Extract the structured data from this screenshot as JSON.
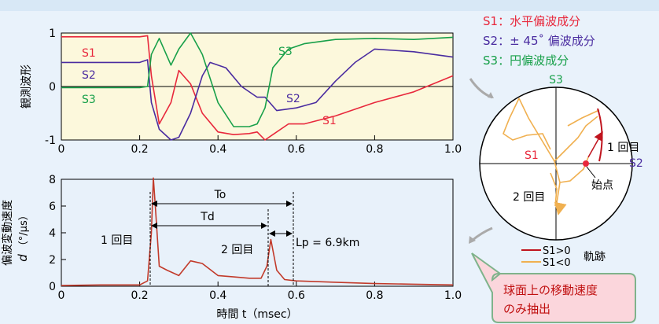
{
  "colors": {
    "s1": "#e8283c",
    "s2": "#4a2ca0",
    "s3": "#18a04a",
    "trace": "#c23a2a",
    "orange": "#f0b050",
    "panel1": "#fcf8dc",
    "panel2": "#e8f1fa",
    "callout_bg": "#fbd6dc",
    "callout_border": "#7fb38b"
  },
  "chart_data": [
    {
      "type": "line",
      "ylabel": "観測波形",
      "xlim": [
        0,
        1.0
      ],
      "ylim": [
        -1,
        1
      ],
      "xticks": [
        "0",
        "0.2",
        "0.4",
        "0.6",
        "0.8",
        "1.0"
      ],
      "yticks": [
        "1",
        "0",
        "-1"
      ],
      "series": [
        {
          "name": "S1",
          "x": [
            0,
            0.2,
            0.22,
            0.23,
            0.25,
            0.28,
            0.3,
            0.33,
            0.36,
            0.4,
            0.44,
            0.48,
            0.5,
            0.52,
            0.54,
            0.58,
            0.62,
            0.7,
            0.8,
            0.9,
            1.0
          ],
          "values": [
            0.93,
            0.93,
            0.95,
            0.2,
            -0.7,
            -0.3,
            0.3,
            0.05,
            -0.5,
            -0.85,
            -0.9,
            -0.88,
            -0.85,
            -1.0,
            -0.9,
            -0.7,
            -0.7,
            -0.55,
            -0.3,
            -0.1,
            0.2
          ]
        },
        {
          "name": "S2",
          "x": [
            0,
            0.2,
            0.22,
            0.23,
            0.25,
            0.28,
            0.3,
            0.33,
            0.36,
            0.38,
            0.42,
            0.46,
            0.5,
            0.52,
            0.55,
            0.6,
            0.65,
            0.7,
            0.75,
            0.8,
            0.9,
            1.0
          ],
          "values": [
            0.45,
            0.45,
            0.5,
            -0.3,
            -0.8,
            -1.0,
            -0.95,
            -0.5,
            0.2,
            0.45,
            0.35,
            0.0,
            -0.2,
            -0.2,
            -0.45,
            -0.4,
            -0.3,
            0.1,
            0.45,
            0.7,
            0.65,
            0.55
          ]
        },
        {
          "name": "S3",
          "x": [
            0,
            0.2,
            0.22,
            0.23,
            0.25,
            0.28,
            0.3,
            0.33,
            0.36,
            0.4,
            0.44,
            0.48,
            0.5,
            0.52,
            0.54,
            0.58,
            0.62,
            0.7,
            0.8,
            0.9,
            1.0
          ],
          "values": [
            -0.02,
            -0.02,
            0.0,
            0.6,
            0.9,
            0.4,
            0.7,
            1.0,
            0.6,
            -0.3,
            -0.75,
            -0.75,
            -0.7,
            -0.4,
            0.35,
            0.7,
            0.8,
            0.88,
            0.9,
            0.88,
            0.92
          ]
        }
      ]
    },
    {
      "type": "line",
      "ylabel": "偏波変動速度 d（°/μs）",
      "xlabel": "時間 t（msec）",
      "xlim": [
        0,
        1.0
      ],
      "ylim": [
        0,
        8
      ],
      "xticks": [
        "0",
        "0.2",
        "0.4",
        "0.6",
        "0.8",
        "1.0"
      ],
      "yticks": [
        "0",
        "2",
        "4",
        "6",
        "8"
      ],
      "series": [
        {
          "name": "d",
          "x": [
            0,
            0.1,
            0.2,
            0.22,
            0.23,
            0.235,
            0.24,
            0.25,
            0.27,
            0.3,
            0.33,
            0.36,
            0.4,
            0.44,
            0.48,
            0.51,
            0.525,
            0.535,
            0.55,
            0.57,
            0.6,
            0.7,
            0.8,
            0.9,
            1.0
          ],
          "values": [
            0.05,
            0.1,
            0.1,
            0.4,
            4.0,
            8.1,
            6.0,
            1.5,
            1.2,
            0.8,
            1.9,
            1.7,
            0.8,
            0.7,
            0.6,
            0.6,
            1.5,
            3.5,
            1.2,
            0.5,
            0.4,
            0.3,
            0.2,
            0.15,
            0.1
          ]
        }
      ]
    }
  ],
  "plot1": {
    "ylabel": "観測波形",
    "curve_labels": {
      "s1a": "S1",
      "s2a": "S2",
      "s3a": "S3",
      "s3b": "S3",
      "s2b": "S2",
      "s1b": "S1"
    }
  },
  "plot2": {
    "ylabel": "偏波変動速度",
    "ylabel_var": "d",
    "ylabel_unit": "（°/μs）",
    "xlabel": "時間 t（msec）",
    "to_label": "To",
    "td_label": "Td",
    "first_label": "1 回目",
    "second_label": "2 回目",
    "lp_label": "Lp = 6.9km"
  },
  "legend": {
    "s1": "S1：水平偏波成分",
    "s2": "S2：± 45˚ 偏波成分",
    "s3": "S3：円偏波成分"
  },
  "sphere": {
    "s3_label": "S3",
    "s1_label": "S1",
    "s2_label": "S2",
    "first_label": "1 回目",
    "second_label": "2 回目",
    "start_label": "始点",
    "key_s1pos": "S1>0",
    "key_s1neg": "S1<0",
    "key_title": "軌跡"
  },
  "callout": {
    "line1": "球面上の移動速度",
    "line2": "のみ抽出"
  }
}
